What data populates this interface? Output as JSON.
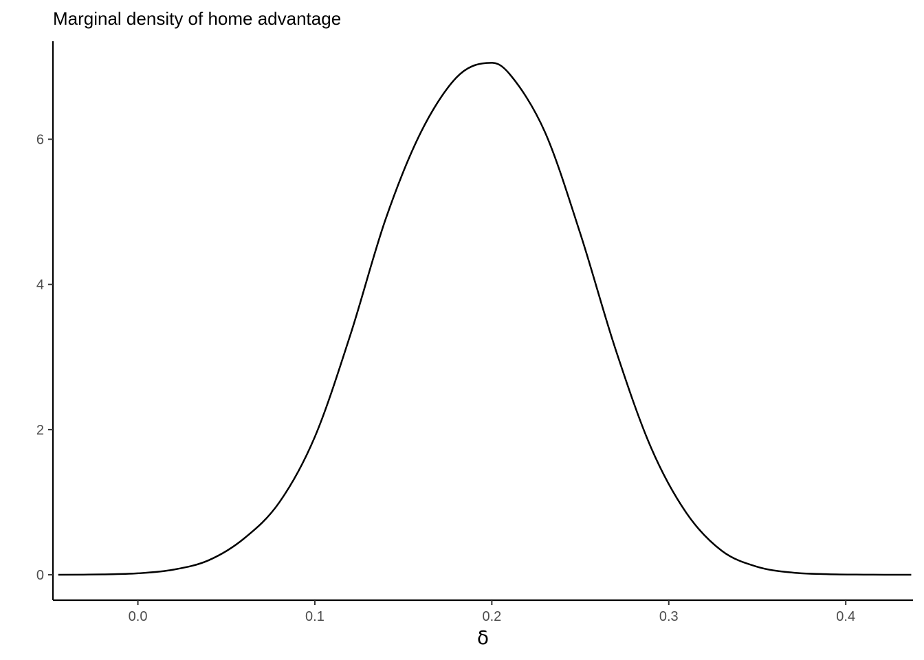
{
  "chart_data": {
    "type": "line",
    "title": "Marginal density of home advantage",
    "xlabel": "δ",
    "ylabel": "",
    "xlim": [
      -0.048,
      0.438
    ],
    "ylim": [
      -0.35,
      7.35
    ],
    "x_ticks": [
      0.0,
      0.1,
      0.2,
      0.3,
      0.4
    ],
    "x_tick_labels": [
      "0.0",
      "0.1",
      "0.2",
      "0.3",
      "0.4"
    ],
    "y_ticks": [
      0,
      2,
      4,
      6
    ],
    "y_tick_labels": [
      "0",
      "2",
      "4",
      "6"
    ],
    "grid": false,
    "legend": "none",
    "line_color": "#000000",
    "series": [
      {
        "x": [
          -0.045,
          -0.02,
          0.0,
          0.02,
          0.04,
          0.06,
          0.08,
          0.1,
          0.12,
          0.14,
          0.16,
          0.18,
          0.197,
          0.21,
          0.23,
          0.25,
          0.27,
          0.29,
          0.31,
          0.33,
          0.35,
          0.37,
          0.39,
          0.41,
          0.437
        ],
        "y": [
          0.0,
          0.005,
          0.02,
          0.07,
          0.2,
          0.5,
          1.0,
          1.9,
          3.3,
          4.9,
          6.1,
          6.85,
          7.05,
          6.9,
          6.1,
          4.7,
          3.1,
          1.75,
          0.85,
          0.33,
          0.11,
          0.03,
          0.008,
          0.002,
          0.0
        ]
      }
    ]
  }
}
